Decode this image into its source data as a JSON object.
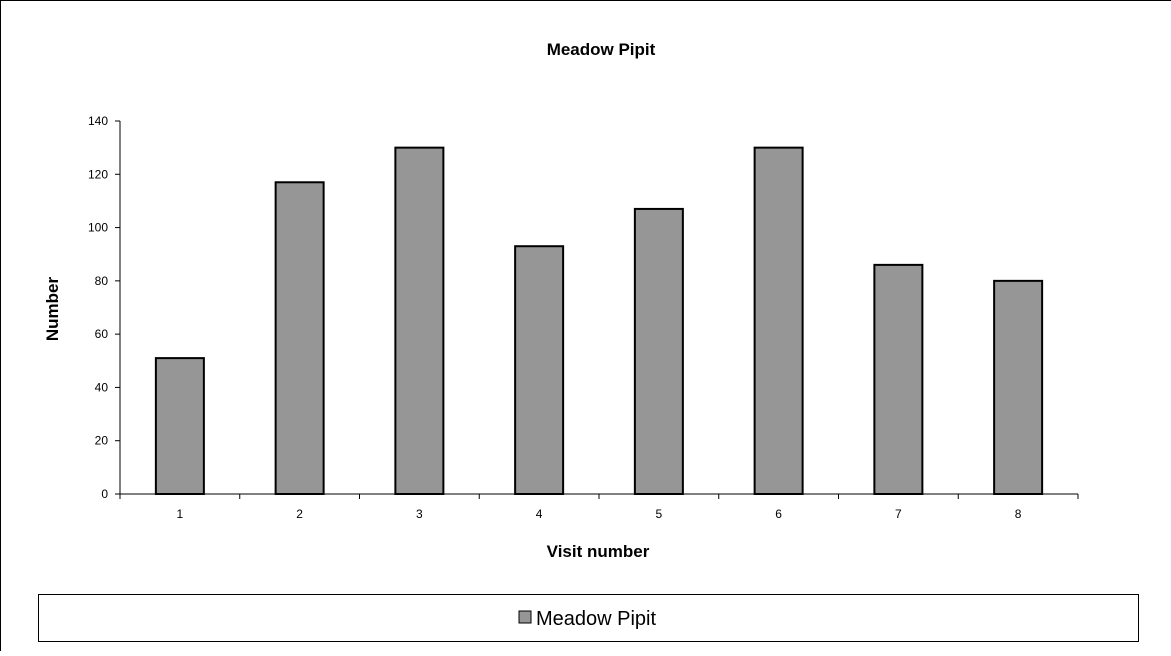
{
  "chart_data": {
    "type": "bar",
    "title": "Meadow Pipit",
    "xlabel": "Visit number",
    "ylabel": "Number",
    "categories": [
      "1",
      "2",
      "3",
      "4",
      "5",
      "6",
      "7",
      "8"
    ],
    "series": [
      {
        "name": "Meadow Pipit",
        "values": [
          51,
          117,
          130,
          93,
          107,
          130,
          86,
          80
        ]
      }
    ],
    "ylim": [
      0,
      140
    ],
    "yticks": [
      "0",
      "20",
      "40",
      "60",
      "80",
      "100",
      "120",
      "140"
    ],
    "grid": false,
    "legend": "bottom",
    "colors": {
      "bar": "#969696",
      "bar_stroke": "#000000"
    }
  }
}
